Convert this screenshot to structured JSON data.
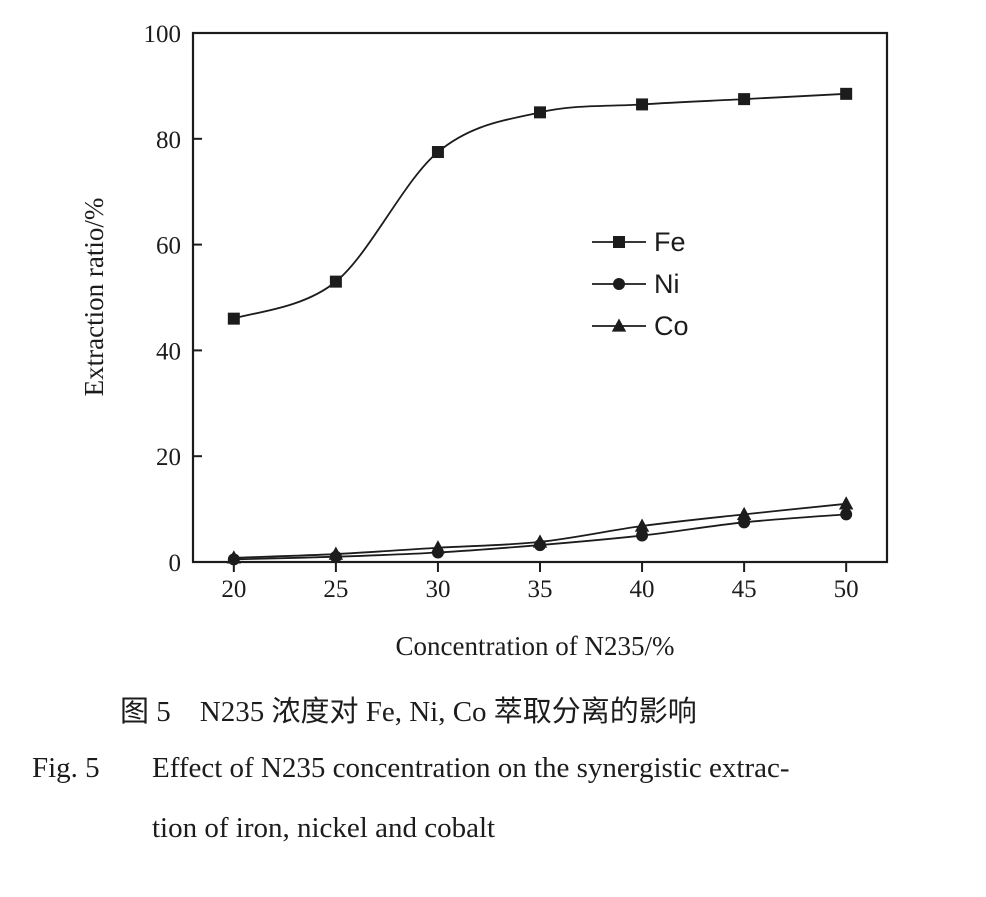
{
  "chart_data": {
    "type": "line",
    "xlabel": "Concentration of N235/%",
    "ylabel": "Extraction ratio/%",
    "x": [
      20,
      25,
      30,
      35,
      40,
      45,
      50
    ],
    "xlim": [
      18,
      52
    ],
    "ylim": [
      0,
      100
    ],
    "xticks": [
      20,
      25,
      30,
      35,
      40,
      45,
      50
    ],
    "yticks": [
      0,
      20,
      40,
      60,
      80,
      100
    ],
    "grid": false,
    "legend_position": "center-right",
    "series": [
      {
        "name": "Fe",
        "marker": "square",
        "values": [
          46,
          53,
          77.5,
          85,
          86.5,
          87.5,
          88.5
        ]
      },
      {
        "name": "Ni",
        "marker": "circle",
        "values": [
          0.5,
          1,
          1.8,
          3.2,
          5,
          7.5,
          9
        ]
      },
      {
        "name": "Co",
        "marker": "triangle",
        "values": [
          0.8,
          1.5,
          2.7,
          3.8,
          6.8,
          9,
          11
        ]
      }
    ],
    "colors": {
      "ink": "#1c1c1c"
    }
  },
  "caption": {
    "cn": "图 5　N235 浓度对 Fe, Ni, Co 萃取分离的影响",
    "en_number": "Fig. 5",
    "en_line1": "Effect of N235 concentration on the synergistic extrac-",
    "en_line2": "tion of iron, nickel and cobalt"
  }
}
